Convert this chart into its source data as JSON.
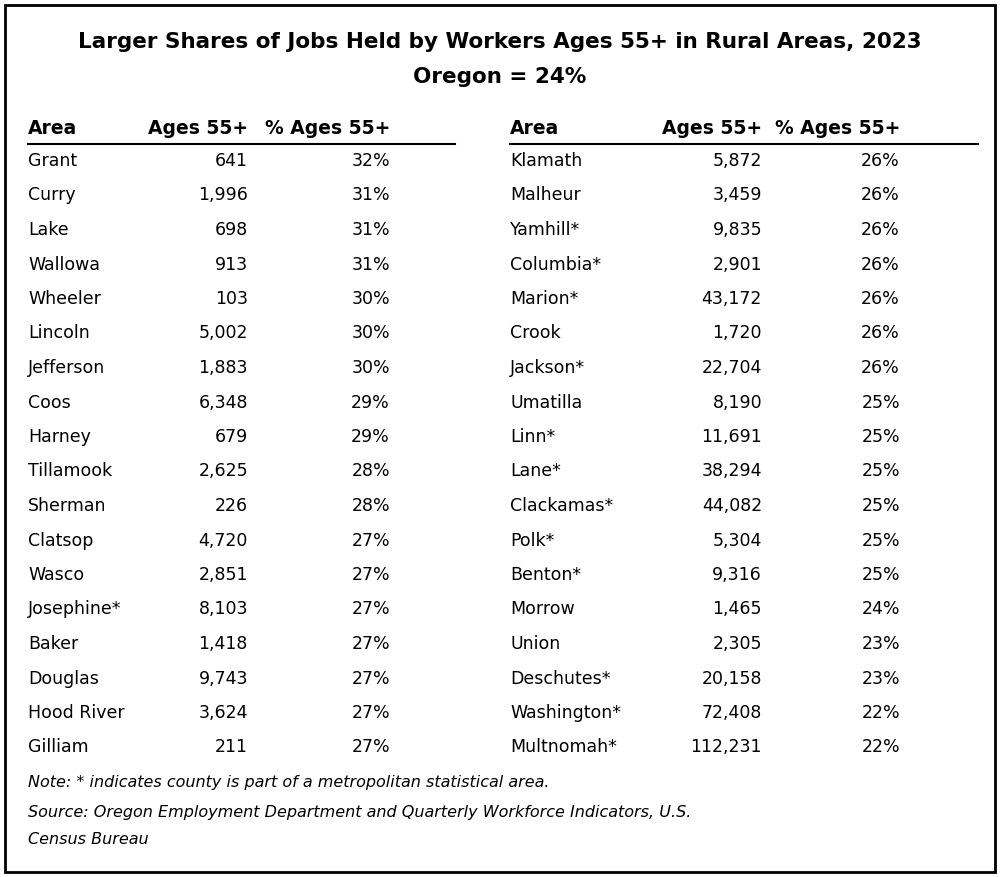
{
  "title_line1": "Larger Shares of Jobs Held by Workers Ages 55+ in Rural Areas, 2023",
  "title_line2": "Oregon = 24%",
  "left_table": {
    "headers": [
      "Area",
      "Ages 55+",
      "% Ages 55+"
    ],
    "rows": [
      [
        "Grant",
        "641",
        "32%"
      ],
      [
        "Curry",
        "1,996",
        "31%"
      ],
      [
        "Lake",
        "698",
        "31%"
      ],
      [
        "Wallowa",
        "913",
        "31%"
      ],
      [
        "Wheeler",
        "103",
        "30%"
      ],
      [
        "Lincoln",
        "5,002",
        "30%"
      ],
      [
        "Jefferson",
        "1,883",
        "30%"
      ],
      [
        "Coos",
        "6,348",
        "29%"
      ],
      [
        "Harney",
        "679",
        "29%"
      ],
      [
        "Tillamook",
        "2,625",
        "28%"
      ],
      [
        "Sherman",
        "226",
        "28%"
      ],
      [
        "Clatsop",
        "4,720",
        "27%"
      ],
      [
        "Wasco",
        "2,851",
        "27%"
      ],
      [
        "Josephine*",
        "8,103",
        "27%"
      ],
      [
        "Baker",
        "1,418",
        "27%"
      ],
      [
        "Douglas",
        "9,743",
        "27%"
      ],
      [
        "Hood River",
        "3,624",
        "27%"
      ],
      [
        "Gilliam",
        "211",
        "27%"
      ]
    ]
  },
  "right_table": {
    "headers": [
      "Area",
      "Ages 55+",
      "% Ages 55+"
    ],
    "rows": [
      [
        "Klamath",
        "5,872",
        "26%"
      ],
      [
        "Malheur",
        "3,459",
        "26%"
      ],
      [
        "Yamhill*",
        "9,835",
        "26%"
      ],
      [
        "Columbia*",
        "2,901",
        "26%"
      ],
      [
        "Marion*",
        "43,172",
        "26%"
      ],
      [
        "Crook",
        "1,720",
        "26%"
      ],
      [
        "Jackson*",
        "22,704",
        "26%"
      ],
      [
        "Umatilla",
        "8,190",
        "25%"
      ],
      [
        "Linn*",
        "11,691",
        "25%"
      ],
      [
        "Lane*",
        "38,294",
        "25%"
      ],
      [
        "Clackamas*",
        "44,082",
        "25%"
      ],
      [
        "Polk*",
        "5,304",
        "25%"
      ],
      [
        "Benton*",
        "9,316",
        "25%"
      ],
      [
        "Morrow",
        "1,465",
        "24%"
      ],
      [
        "Union",
        "2,305",
        "23%"
      ],
      [
        "Deschutes*",
        "20,158",
        "23%"
      ],
      [
        "Washington*",
        "72,408",
        "22%"
      ],
      [
        "Multnomah*",
        "112,231",
        "22%"
      ]
    ]
  },
  "note_line1": "Note: * indicates county is part of a metropolitan statistical area.",
  "note_line2": "Source: Oregon Employment Department and Quarterly Workforce Indicators, U.S.",
  "note_line3": "Census Bureau",
  "bg_color": "#ffffff",
  "border_color": "#000000",
  "title_fontsize": 15.5,
  "header_fontsize": 13.5,
  "data_fontsize": 12.5,
  "note_fontsize": 11.5
}
